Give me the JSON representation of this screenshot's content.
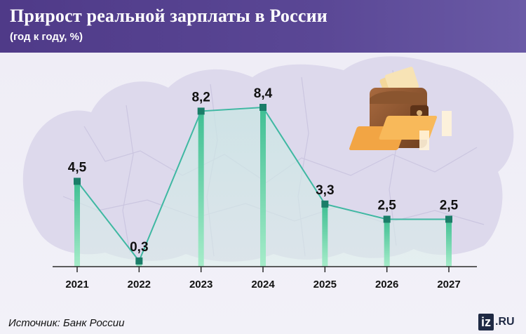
{
  "header": {
    "title": "Прирост реальной зарплаты в России",
    "subtitle": "(год к году, %)"
  },
  "chart_data": {
    "type": "line",
    "title": "Прирост реальной зарплаты в России",
    "subtitle": "(год к году, %)",
    "categories": [
      "2021",
      "2022",
      "2023",
      "2024",
      "2025",
      "2026",
      "2027"
    ],
    "values": [
      4.5,
      0.3,
      8.2,
      8.4,
      3.3,
      2.5,
      2.5
    ],
    "data_labels": [
      "4,5",
      "0,3",
      "8,2",
      "8,4",
      "3,3",
      "2,5",
      "2,5"
    ],
    "ylim": [
      0,
      9
    ],
    "grid": false,
    "legend": "none"
  },
  "footer": {
    "source": "Источник: Банк России",
    "logo_box": "iz",
    "logo_suffix": ".RU"
  },
  "colors": {
    "header": "#52408c",
    "line": "#3fb8a2",
    "bar": "#73d4ad",
    "marker": "#1a7d68",
    "map": "#dcd8ea"
  }
}
